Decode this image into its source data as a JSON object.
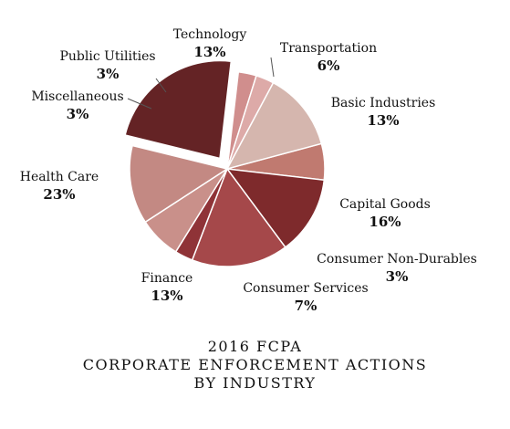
{
  "chart_data": {
    "type": "pie",
    "title_lines": [
      "2016 FCPA",
      "CORPORATE ENFORCEMENT ACTIONS",
      "BY INDUSTRY"
    ],
    "slices": [
      {
        "name": "Transportation",
        "value": 6,
        "label": "6%",
        "color": "#c07a70"
      },
      {
        "name": "Basic Industries",
        "value": 13,
        "label": "13%",
        "color": "#7e2a2c"
      },
      {
        "name": "Capital Goods",
        "value": 16,
        "label": "16%",
        "color": "#a5484a"
      },
      {
        "name": "Consumer Non-Durables",
        "value": 3,
        "label": "3%",
        "color": "#8f3337"
      },
      {
        "name": "Consumer Services",
        "value": 7,
        "label": "7%",
        "color": "#c9908a"
      },
      {
        "name": "Finance",
        "value": 13,
        "label": "13%",
        "color": "#c38983"
      },
      {
        "name": "Health Care",
        "value": 23,
        "label": "23%",
        "color": "#642325",
        "exploded": true
      },
      {
        "name": "Miscellaneous",
        "value": 3,
        "label": "3%",
        "color": "#d08e8d"
      },
      {
        "name": "Public Utilities",
        "value": 3,
        "label": "3%",
        "color": "#ddaaa8"
      },
      {
        "name": "Technology",
        "value": 13,
        "label": "13%",
        "color": "#d5b6ae"
      }
    ]
  }
}
